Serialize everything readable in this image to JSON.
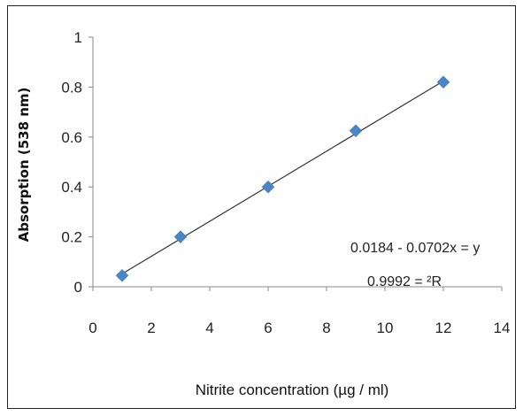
{
  "chart_data": {
    "type": "scatter",
    "xlabel": "Nitrite concentration (µg / ml)",
    "ylabel": "Absorption (538 nm)",
    "xlim": [
      0,
      14
    ],
    "ylim": [
      0,
      1
    ],
    "xticks": [
      0,
      2,
      4,
      6,
      8,
      10,
      12,
      14
    ],
    "yticks": [
      0,
      0.2,
      0.4,
      0.6,
      0.8,
      1
    ],
    "ytick_labels": [
      "0",
      "0.2",
      "0.4",
      "0.6",
      "0.8",
      "1"
    ],
    "grid": false,
    "points": {
      "x": [
        1,
        3,
        6,
        9,
        12
      ],
      "y": [
        0.045,
        0.2,
        0.4,
        0.625,
        0.82
      ]
    },
    "trendline": {
      "slope": 0.0702,
      "intercept": -0.0184
    },
    "annotations": {
      "equation": "0.0184 - 0.0702x = y",
      "r_squared": "0.9992 = ²R"
    },
    "marker_color": "#4a86c5",
    "line_color": "#333333"
  }
}
